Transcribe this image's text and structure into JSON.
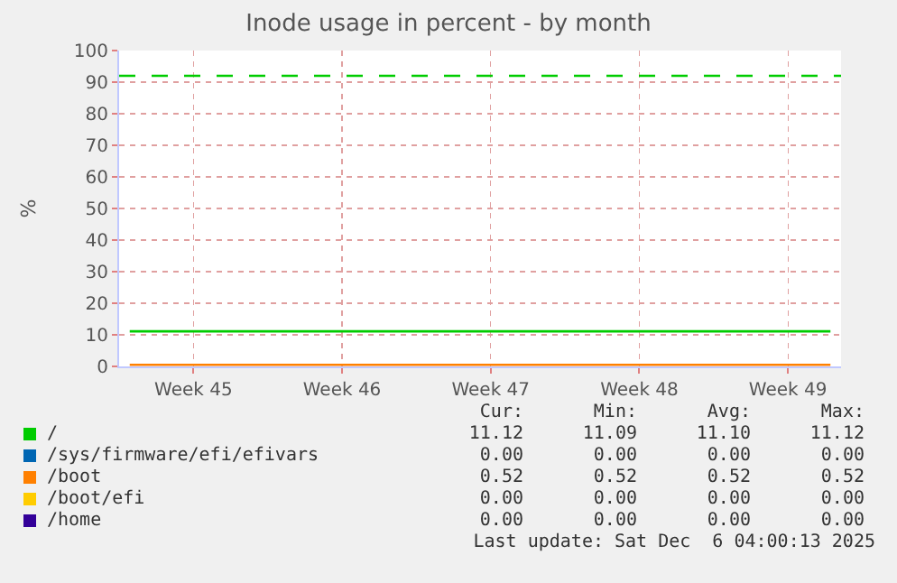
{
  "chart_data": {
    "type": "line",
    "title": "Inode usage in percent - by month",
    "ylabel": "%",
    "categories": [
      null,
      null,
      null,
      "Week 45",
      null,
      null,
      null,
      null,
      null,
      null,
      "Week 46",
      null,
      null,
      null,
      null,
      null,
      null,
      "Week 47",
      null,
      null,
      null,
      null,
      null,
      null,
      "Week 48",
      null,
      null,
      null,
      null,
      null,
      null,
      "Week 49",
      null,
      null
    ],
    "ylim": [
      0,
      100
    ],
    "yticks": [
      0,
      10,
      20,
      30,
      40,
      50,
      60,
      70,
      80,
      90,
      100
    ],
    "grid": true,
    "legend": "bottom",
    "marker": "none",
    "line_style": "solid",
    "series": [
      {
        "name": "/",
        "color": "#00cc00",
        "values": [
          11.1,
          11.1,
          11.1,
          11.1,
          11.1,
          11.1,
          11.1,
          11.1,
          11.1,
          11.1,
          11.1,
          11.1,
          11.1,
          11.1,
          11.1,
          11.1,
          11.1,
          11.1,
          11.1,
          11.1,
          11.1,
          11.1,
          11.1,
          11.1,
          11.1,
          11.1,
          11.1,
          11.1,
          11.1,
          11.1,
          11.1,
          11.1,
          11.1,
          11.1
        ]
      },
      {
        "name": "/sys/firmware/efi/efivars",
        "color": "#0066b3",
        "values": [
          null,
          null,
          null,
          null,
          null,
          null,
          null,
          null,
          null,
          null,
          null,
          null,
          null,
          null,
          null,
          null,
          null,
          null,
          null,
          null,
          null,
          null,
          null,
          null,
          null,
          null,
          null,
          null,
          null,
          null,
          null,
          null,
          null,
          null
        ]
      },
      {
        "name": "/boot",
        "color": "#ff8000",
        "values": [
          0.5,
          0.5,
          0.5,
          0.5,
          0.5,
          0.5,
          0.5,
          0.5,
          0.5,
          0.5,
          0.5,
          0.5,
          0.5,
          0.5,
          0.5,
          0.5,
          0.5,
          0.5,
          0.5,
          0.5,
          0.5,
          0.5,
          0.5,
          0.5,
          0.5,
          0.5,
          0.5,
          0.5,
          0.5,
          0.5,
          0.5,
          0.5,
          0.5,
          0.5
        ]
      },
      {
        "name": "/boot/efi",
        "color": "#ffcc00",
        "values": [
          null,
          null,
          null,
          null,
          null,
          null,
          null,
          null,
          null,
          null,
          null,
          null,
          null,
          null,
          null,
          null,
          null,
          null,
          null,
          null,
          null,
          null,
          null,
          null,
          null,
          null,
          null,
          null,
          null,
          null,
          null,
          null,
          null,
          null
        ]
      },
      {
        "name": "/home",
        "color": "#330099",
        "values": [
          null,
          null,
          null,
          null,
          null,
          null,
          null,
          null,
          null,
          null,
          null,
          null,
          null,
          null,
          null,
          null,
          null,
          null,
          null,
          null,
          null,
          null,
          null,
          null,
          null,
          null,
          null,
          null,
          null,
          null,
          null,
          null,
          null,
          null
        ]
      }
    ],
    "ref_lines": [
      {
        "axis": "y",
        "value": 92,
        "color": "#00cc00",
        "line_style": "dashed"
      }
    ],
    "annotations": [
      "Cur:",
      "Min:",
      "Avg:",
      "Max:",
      "11.12",
      "11.09",
      "11.10",
      "11.12",
      "0.00",
      "0.00",
      "0.00",
      "0.00",
      "0.52",
      "0.52",
      "0.52",
      "0.52",
      "0.00",
      "0.00",
      "0.00",
      "0.00",
      "0.00",
      "0.00",
      "0.00",
      "0.00",
      "Last update: Sat Dec  6 04:00:13 2025"
    ]
  }
}
